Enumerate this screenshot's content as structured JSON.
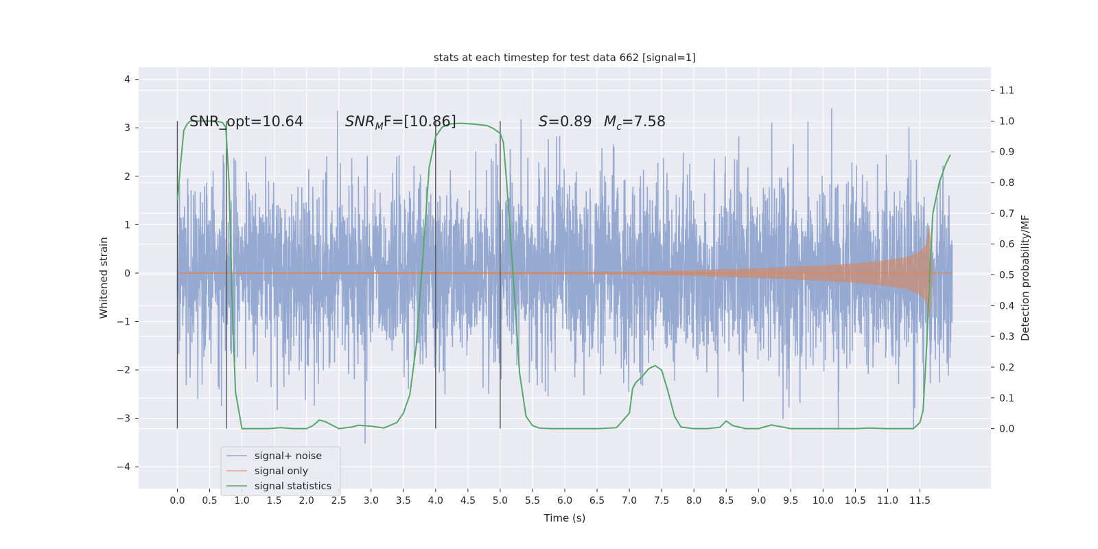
{
  "chart_data": {
    "type": "line",
    "title": "stats at each timestep for test data 662 [signal=1]",
    "xlabel": "Time (s)",
    "ylabel": "Whitened strain",
    "y2label": "Detection probability/MF",
    "xlim": [
      -0.6,
      12.6
    ],
    "ylim": [
      -4.45,
      4.25
    ],
    "y2lim": [
      -0.195,
      1.175
    ],
    "x_ticks": [
      "0.0",
      "0.5",
      "1.0",
      "1.5",
      "2.0",
      "2.5",
      "3.0",
      "3.5",
      "4.0",
      "4.5",
      "5.0",
      "5.5",
      "6.0",
      "6.5",
      "7.0",
      "7.5",
      "8.0",
      "8.5",
      "9.0",
      "9.5",
      "10.0",
      "10.5",
      "11.0",
      "11.5"
    ],
    "y_ticks": [
      "4",
      "3",
      "2",
      "1",
      "0",
      "−1",
      "−2",
      "−3",
      "−4"
    ],
    "y2_ticks": [
      "1.1",
      "1.0",
      "0.9",
      "0.8",
      "0.7",
      "0.6",
      "0.5",
      "0.4",
      "0.3",
      "0.2",
      "0.1",
      "0.0"
    ],
    "grid": true,
    "legend_position": "lower-left",
    "series": [
      {
        "name": "signal+ noise",
        "color": "#91a5cf",
        "description_values": "whitened strain noise, approx Gaussian, amplitude within ±4, spanning 0.0–12.0 s",
        "x_range": [
          0.0,
          12.0
        ]
      },
      {
        "name": "signal only",
        "color": "#dd8452",
        "envelope": {
          "x": [
            0.0,
            7.0,
            8.0,
            9.0,
            10.0,
            10.5,
            11.0,
            11.3,
            11.5,
            11.6,
            11.65,
            11.7,
            12.0
          ],
          "y": [
            0.01,
            0.03,
            0.06,
            0.1,
            0.16,
            0.2,
            0.27,
            0.33,
            0.45,
            0.6,
            1.05,
            0.0,
            0.0
          ]
        }
      },
      {
        "name": "signal statistics",
        "color": "#55a868",
        "axis": "right",
        "x": [
          0.0,
          0.05,
          0.1,
          0.15,
          0.2,
          0.3,
          0.4,
          0.5,
          0.6,
          0.7,
          0.75,
          0.8,
          0.85,
          0.9,
          1.0,
          1.2,
          1.4,
          1.6,
          1.8,
          2.0,
          2.1,
          2.2,
          2.3,
          2.5,
          2.7,
          2.8,
          3.0,
          3.2,
          3.4,
          3.5,
          3.6,
          3.7,
          3.8,
          3.9,
          4.0,
          4.1,
          4.2,
          4.3,
          4.4,
          4.6,
          4.8,
          4.9,
          5.0,
          5.05,
          5.1,
          5.2,
          5.3,
          5.4,
          5.5,
          5.6,
          5.8,
          6.0,
          6.5,
          6.8,
          7.0,
          7.05,
          7.1,
          7.2,
          7.3,
          7.4,
          7.5,
          7.6,
          7.7,
          7.8,
          8.0,
          8.2,
          8.4,
          8.5,
          8.6,
          8.8,
          9.0,
          9.2,
          9.5,
          10.0,
          10.5,
          10.7,
          11.0,
          11.4,
          11.5,
          11.55,
          11.6,
          11.65,
          11.7,
          11.8,
          11.9,
          11.97
        ],
        "y": [
          0.74,
          0.86,
          0.97,
          0.99,
          1.0,
          1.0,
          1.0,
          1.0,
          1.0,
          0.995,
          0.98,
          0.8,
          0.4,
          0.12,
          0.0,
          0.0,
          0.0,
          0.003,
          0.0,
          0.0,
          0.01,
          0.028,
          0.022,
          0.0,
          0.005,
          0.011,
          0.008,
          0.002,
          0.02,
          0.05,
          0.11,
          0.27,
          0.55,
          0.85,
          0.95,
          0.98,
          0.99,
          0.992,
          0.993,
          0.99,
          0.985,
          0.975,
          0.96,
          0.93,
          0.8,
          0.5,
          0.18,
          0.04,
          0.01,
          0.002,
          0.0,
          0.0,
          0.0,
          0.003,
          0.05,
          0.13,
          0.15,
          0.17,
          0.195,
          0.205,
          0.19,
          0.12,
          0.04,
          0.005,
          0.0,
          0.0,
          0.004,
          0.025,
          0.01,
          0.0,
          0.0,
          0.012,
          0.0,
          0.0,
          0.0,
          0.002,
          0.0,
          0.0,
          0.02,
          0.06,
          0.25,
          0.5,
          0.7,
          0.8,
          0.86,
          0.89
        ]
      }
    ],
    "vertical_lines_x": [
      0.0,
      0.76,
      4.0,
      5.0
    ],
    "annotations": [
      "SNR_opt=10.64",
      "SNR",
      "M",
      "F=[10.86]",
      "S",
      "=0.89",
      "M",
      "c",
      "=7.58"
    ],
    "colors": {
      "plot_bg": "#eaeaf2",
      "grid": "#ffffff",
      "vline": "#555555"
    }
  }
}
